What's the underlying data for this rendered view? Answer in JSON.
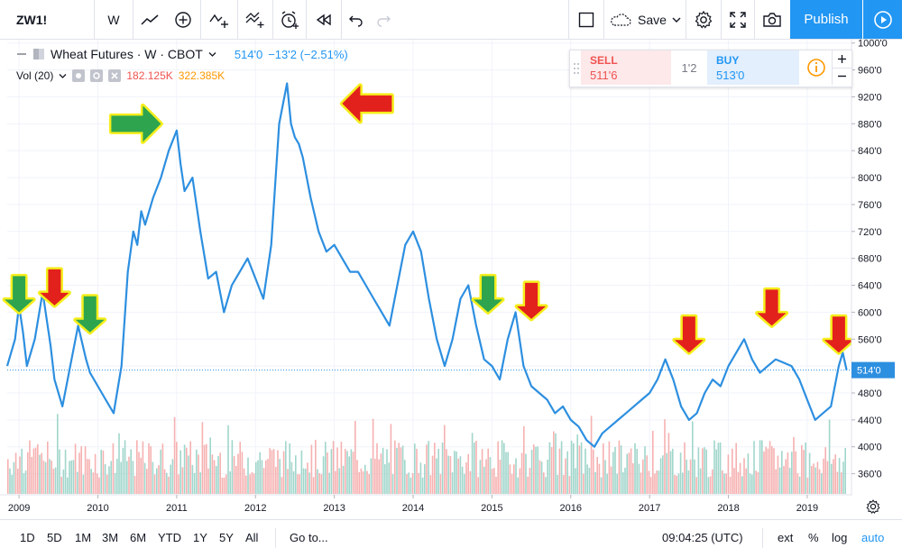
{
  "toolbar": {
    "symbol": "ZW1!",
    "interval": "W",
    "save_label": "Save",
    "publish_label": "Publish"
  },
  "legend": {
    "title": "Wheat Futures · W · CBOT",
    "last_price": "514'0",
    "change": "−13'2 (−2.51%)",
    "vol_label": "Vol (20)",
    "vol_value_1": "182.125K",
    "vol_value_2": "322.385K"
  },
  "order_panel": {
    "sell_label": "SELL",
    "sell_price": "511'6",
    "spread": "1'2",
    "buy_label": "BUY",
    "buy_price": "513'0"
  },
  "price_axis": {
    "labels": [
      "1000'0",
      "960'0",
      "920'0",
      "880'0",
      "840'0",
      "800'0",
      "760'0",
      "720'0",
      "680'0",
      "640'0",
      "600'0",
      "560'0",
      "520'0",
      "480'0",
      "440'0",
      "400'0",
      "360'0"
    ],
    "current_label": "514'0"
  },
  "time_axis": {
    "labels": [
      "2009",
      "2010",
      "2011",
      "2012",
      "2013",
      "2014",
      "2015",
      "2016",
      "2017",
      "2018",
      "2019"
    ]
  },
  "bottom_bar": {
    "ranges": [
      "1D",
      "5D",
      "1M",
      "3M",
      "6M",
      "YTD",
      "1Y",
      "5Y",
      "All"
    ],
    "goto_label": "Go to...",
    "clock": "09:04:25 (UTC)",
    "ext_label": "ext",
    "pct_label": "%",
    "log_label": "log",
    "auto_label": "auto"
  },
  "colors": {
    "line": "#2d8fe0",
    "vol_up": "#8fcfc2",
    "vol_down": "#f4a3a3",
    "accent": "#2196f3",
    "sell": "#ef5350",
    "buy": "#2196f3",
    "arrow_green": "#2ea44f",
    "arrow_red": "#e3211c",
    "arrow_outline": "#f5ee1c"
  },
  "chart_data": {
    "type": "line",
    "x": [
      2008.85,
      2008.95,
      2009.0,
      2009.05,
      2009.1,
      2009.2,
      2009.3,
      2009.4,
      2009.45,
      2009.55,
      2009.65,
      2009.75,
      2009.85,
      2009.9,
      2010.0,
      2010.1,
      2010.2,
      2010.3,
      2010.38,
      2010.45,
      2010.5,
      2010.55,
      2010.6,
      2010.7,
      2010.8,
      2010.9,
      2011.0,
      2011.05,
      2011.1,
      2011.2,
      2011.3,
      2011.4,
      2011.5,
      2011.6,
      2011.7,
      2011.8,
      2011.9,
      2012.0,
      2012.1,
      2012.2,
      2012.3,
      2012.4,
      2012.45,
      2012.5,
      2012.55,
      2012.6,
      2012.7,
      2012.8,
      2012.9,
      2013.0,
      2013.1,
      2013.2,
      2013.3,
      2013.4,
      2013.5,
      2013.6,
      2013.7,
      2013.8,
      2013.9,
      2014.0,
      2014.1,
      2014.2,
      2014.3,
      2014.4,
      2014.5,
      2014.6,
      2014.7,
      2014.8,
      2014.9,
      2015.0,
      2015.1,
      2015.2,
      2015.3,
      2015.4,
      2015.5,
      2015.6,
      2015.7,
      2015.8,
      2015.9,
      2016.0,
      2016.1,
      2016.2,
      2016.3,
      2016.4,
      2016.5,
      2016.6,
      2016.7,
      2016.8,
      2016.9,
      2017.0,
      2017.1,
      2017.2,
      2017.3,
      2017.4,
      2017.5,
      2017.6,
      2017.7,
      2017.8,
      2017.9,
      2018.0,
      2018.1,
      2018.2,
      2018.3,
      2018.4,
      2018.5,
      2018.6,
      2018.7,
      2018.8,
      2018.9,
      2019.0,
      2019.1,
      2019.2,
      2019.3,
      2019.4,
      2019.45,
      2019.5
    ],
    "y": [
      520,
      560,
      610,
      570,
      520,
      560,
      630,
      550,
      500,
      460,
      520,
      580,
      530,
      510,
      490,
      470,
      450,
      520,
      660,
      720,
      700,
      750,
      730,
      770,
      800,
      840,
      870,
      820,
      780,
      800,
      720,
      650,
      660,
      600,
      640,
      660,
      680,
      650,
      620,
      700,
      880,
      940,
      880,
      860,
      850,
      830,
      770,
      720,
      690,
      700,
      680,
      660,
      660,
      640,
      620,
      600,
      580,
      640,
      700,
      720,
      690,
      620,
      560,
      520,
      560,
      620,
      640,
      580,
      530,
      520,
      500,
      560,
      600,
      520,
      490,
      480,
      470,
      450,
      460,
      440,
      430,
      410,
      400,
      420,
      430,
      440,
      450,
      460,
      470,
      480,
      500,
      530,
      500,
      460,
      440,
      450,
      480,
      500,
      490,
      520,
      540,
      560,
      530,
      510,
      520,
      530,
      525,
      520,
      500,
      470,
      440,
      450,
      460,
      520,
      540,
      514
    ],
    "xlim": [
      2008.85,
      2019.55
    ],
    "ylim": [
      330,
      1005
    ],
    "y_ticks": [
      1000,
      960,
      920,
      880,
      840,
      800,
      760,
      720,
      680,
      640,
      600,
      560,
      520,
      480,
      440,
      400,
      360
    ],
    "x_ticks": [
      2009,
      2010,
      2011,
      2012,
      2013,
      2014,
      2015,
      2016,
      2017,
      2018,
      2019
    ],
    "current_value": 514,
    "annotations": [
      {
        "kind": "arrow",
        "direction": "down",
        "color": "green",
        "x": 2009.0,
        "y": 600
      },
      {
        "kind": "arrow",
        "direction": "down",
        "color": "red",
        "x": 2009.45,
        "y": 610
      },
      {
        "kind": "arrow",
        "direction": "down",
        "color": "green",
        "x": 2009.9,
        "y": 570
      },
      {
        "kind": "arrow",
        "direction": "right",
        "color": "green",
        "x": 2010.8,
        "y": 880
      },
      {
        "kind": "arrow",
        "direction": "left",
        "color": "red",
        "x": 2013.1,
        "y": 910
      },
      {
        "kind": "arrow",
        "direction": "down",
        "color": "green",
        "x": 2014.95,
        "y": 600
      },
      {
        "kind": "arrow",
        "direction": "down",
        "color": "red",
        "x": 2015.5,
        "y": 590
      },
      {
        "kind": "arrow",
        "direction": "down",
        "color": "red",
        "x": 2017.5,
        "y": 540
      },
      {
        "kind": "arrow",
        "direction": "down",
        "color": "red",
        "x": 2018.55,
        "y": 580
      },
      {
        "kind": "arrow",
        "direction": "down",
        "color": "red",
        "x": 2019.4,
        "y": 540
      }
    ]
  }
}
